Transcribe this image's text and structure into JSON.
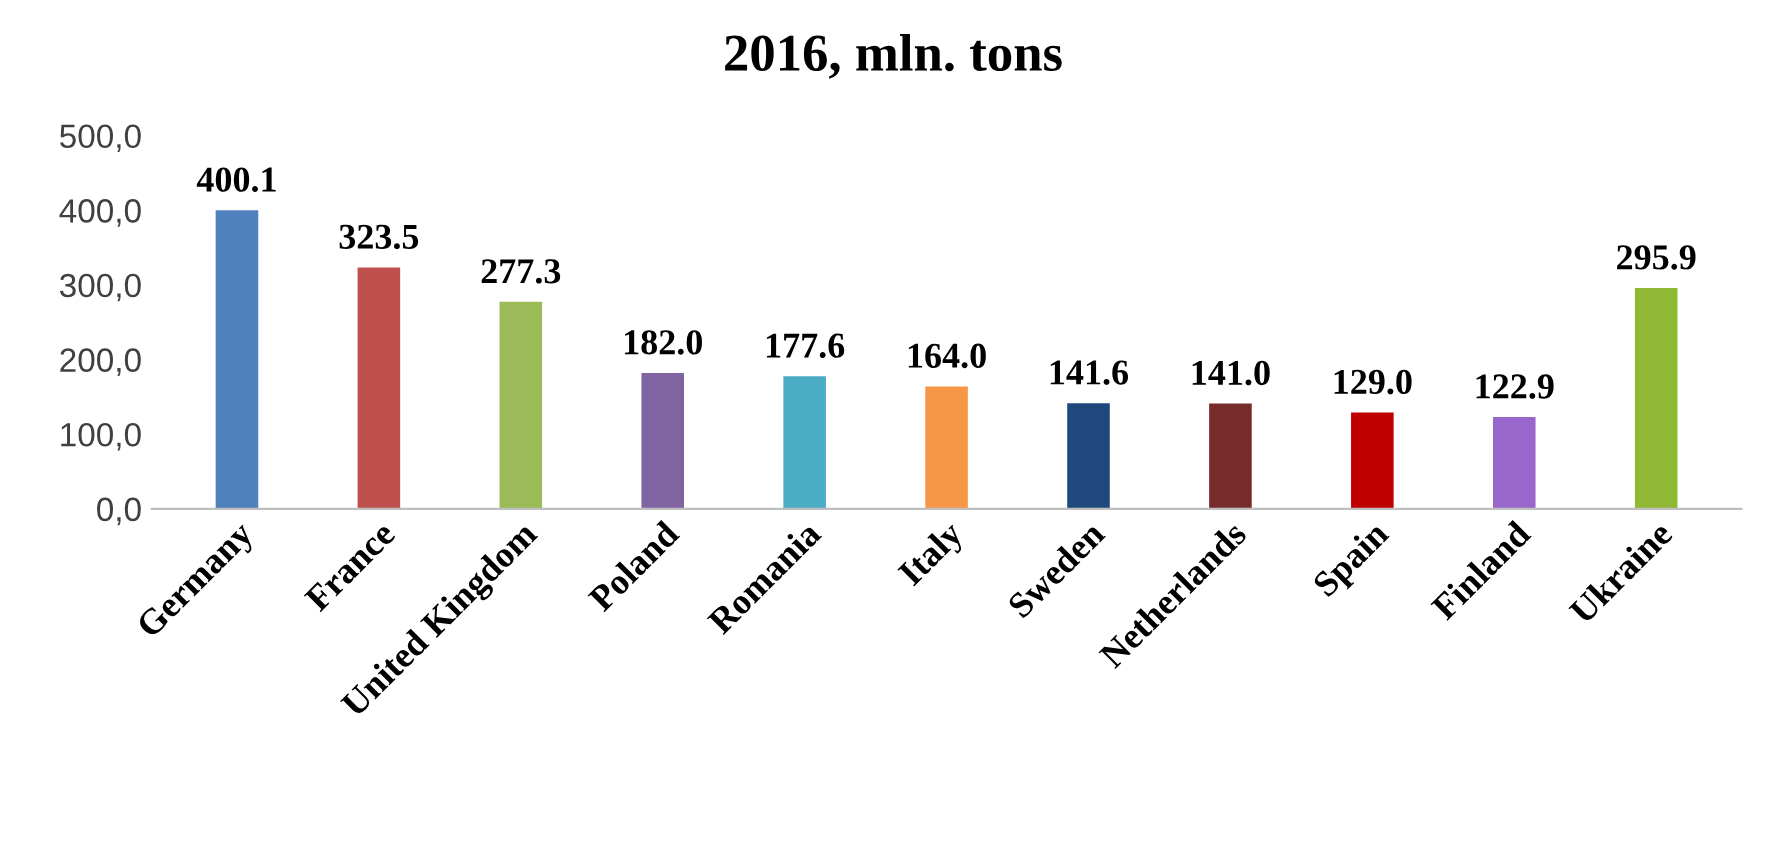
{
  "chart_data": {
    "type": "bar",
    "title": "2016, mln. tons",
    "categories": [
      "Germany",
      "France",
      "United Kingdom",
      "Poland",
      "Romania",
      "Italy",
      "Sweden",
      "Netherlands",
      "Spain",
      "Finland",
      "Ukraine"
    ],
    "values": [
      400.1,
      323.5,
      277.3,
      182.0,
      177.6,
      164.0,
      141.6,
      141.0,
      129.0,
      122.9,
      295.9
    ],
    "value_labels": [
      "400.1",
      "323.5",
      "277.3",
      "182.0",
      "177.6",
      "164.0",
      "141.6",
      "141.0",
      "129.0",
      "122.9",
      "295.9"
    ],
    "colors": [
      "#4f81bd",
      "#c0504d",
      "#9bbb59",
      "#8064a2",
      "#4bacc6",
      "#f79646",
      "#1f497d",
      "#772c2a",
      "#c00000",
      "#9966cc",
      "#8fb935"
    ],
    "ylim": [
      0,
      500
    ],
    "yticks": [
      {
        "value": 0,
        "label": "0,0"
      },
      {
        "value": 100,
        "label": "100,0"
      },
      {
        "value": 200,
        "label": "200,0"
      },
      {
        "value": 300,
        "label": "300,0"
      },
      {
        "value": 400,
        "label": "400,0"
      },
      {
        "value": 500,
        "label": "500,0"
      }
    ],
    "grid": false,
    "legend": false
  }
}
